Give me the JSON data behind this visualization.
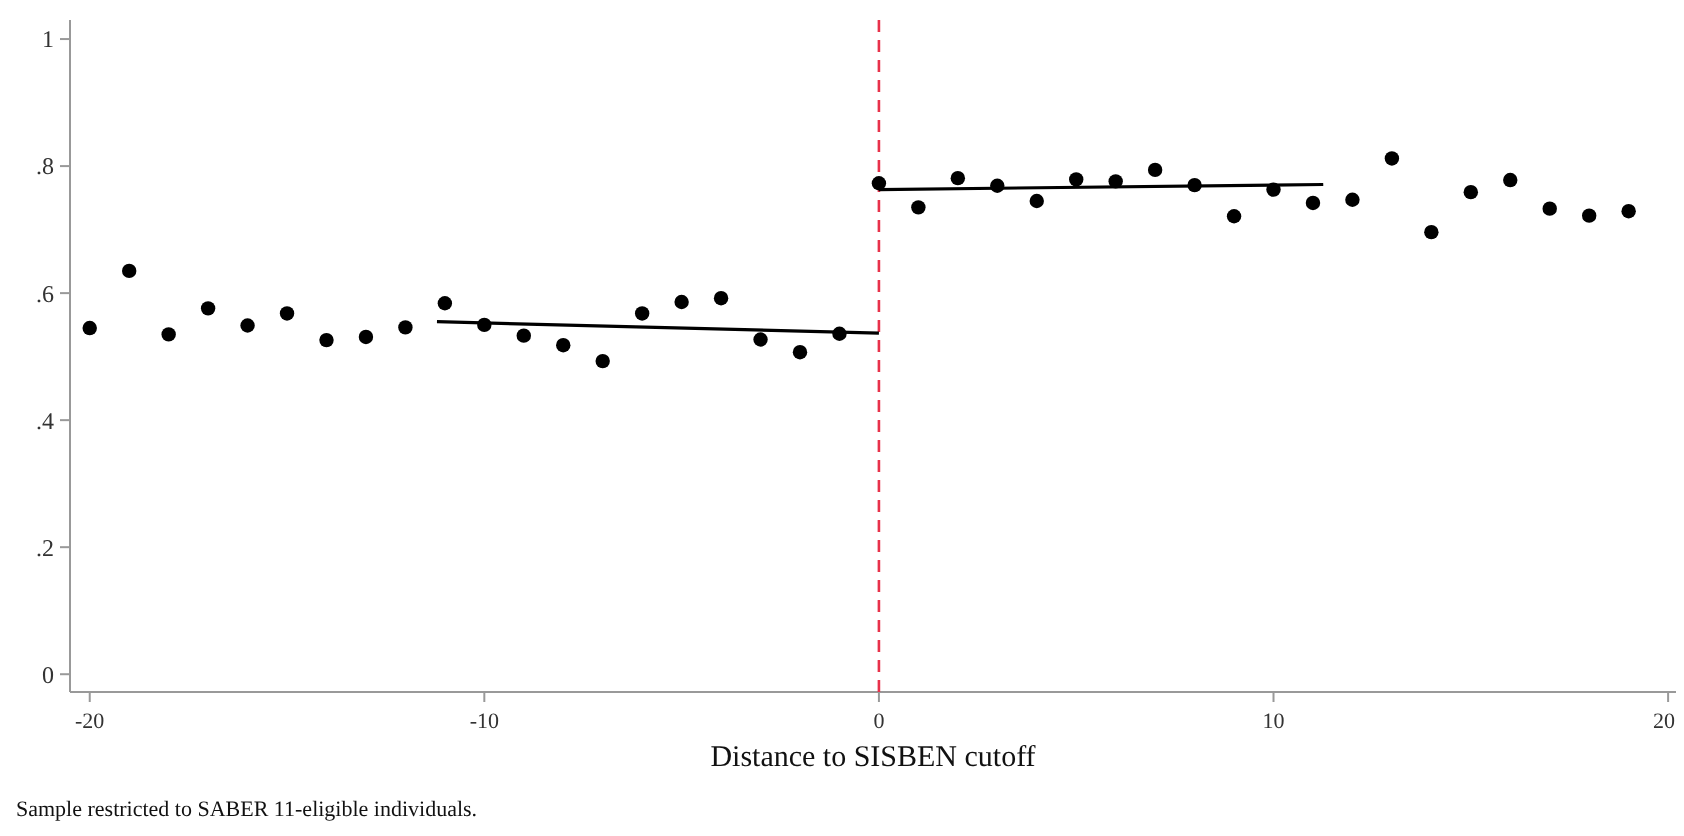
{
  "chart_data": {
    "type": "scatter",
    "xlabel": "Distance to SISBEN cutoff",
    "annotations": [
      "Sample restricted to SABER 11-eligible individuals."
    ],
    "xlim": [
      -20.5,
      20.2
    ],
    "xticks": [
      -20,
      -10,
      0,
      10,
      20
    ],
    "ylim": [
      -0.028,
      1.03
    ],
    "yticks": [
      0,
      {
        "value": 0.2,
        "label": ".2"
      },
      {
        "value": 0.4,
        "label": ".4"
      },
      {
        "value": 0.6,
        "label": ".6"
      },
      {
        "value": 0.8,
        "label": ".8"
      },
      1
    ],
    "grid": false,
    "marker": "circle",
    "series": [
      {
        "color": "#000000",
        "x": [
          -20,
          -19,
          -18,
          -17,
          -16,
          -15,
          -14,
          -13,
          -12,
          -11,
          -10,
          -9,
          -8,
          -7,
          -6,
          -5,
          -4,
          -3,
          -2,
          -1,
          0,
          1,
          2,
          3,
          4,
          5,
          6,
          7,
          8,
          9,
          10,
          11,
          12,
          13,
          14,
          15,
          16,
          17,
          18,
          19
        ],
        "values": [
          0.545,
          0.635,
          0.535,
          0.576,
          0.549,
          0.568,
          0.526,
          0.531,
          0.546,
          0.584,
          0.55,
          0.533,
          0.518,
          0.493,
          0.568,
          0.586,
          0.592,
          0.527,
          0.507,
          0.536,
          0.773,
          0.735,
          0.781,
          0.769,
          0.745,
          0.779,
          0.776,
          0.794,
          0.77,
          0.721,
          0.763,
          0.742,
          0.747,
          0.812,
          0.696,
          0.759,
          0.778,
          0.733,
          0.722,
          0.729
        ]
      },
      {
        "type": "line",
        "marker": "none",
        "color": "#000000",
        "x": [
          -11.2,
          0
        ],
        "values": [
          0.555,
          0.537
        ]
      },
      {
        "type": "line",
        "marker": "none",
        "color": "#000000",
        "x": [
          0,
          11.26
        ],
        "values": [
          0.763,
          0.771
        ]
      }
    ],
    "ref_lines": [
      {
        "axis": "x",
        "value": 0,
        "color": "#e8314a",
        "line_style": "dashed"
      }
    ]
  }
}
